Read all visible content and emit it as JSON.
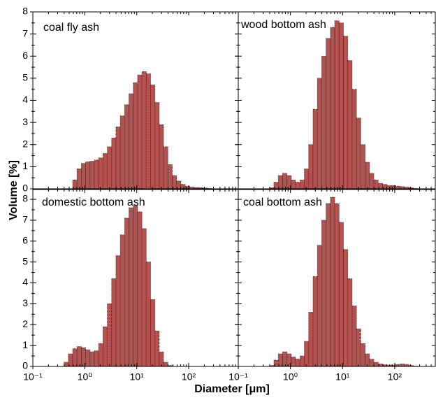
{
  "xlabel": "Diameter [μm]",
  "ylabel": "Volume [%]",
  "log_x": true,
  "xticks": [
    {
      "value": 0.1,
      "label": "10⁻¹"
    },
    {
      "value": 1,
      "label": "10⁰"
    },
    {
      "value": 10,
      "label": "10¹"
    },
    {
      "value": 100,
      "label": "10²"
    }
  ],
  "yticks": [
    0,
    1,
    2,
    3,
    4,
    5,
    6,
    7,
    8
  ],
  "chart_data": [
    {
      "type": "histogram",
      "label": "coal fly ash",
      "color": "#b5524f",
      "xlim": [
        0.1,
        900
      ],
      "ylim": [
        0,
        8
      ],
      "bins": [
        0.398,
        0.482,
        0.585,
        0.708,
        0.858,
        1.039,
        1.259,
        1.525,
        1.848,
        2.239,
        2.713,
        3.286,
        3.981,
        4.823,
        5.843,
        7.079,
        8.577,
        10.39,
        12.59,
        15.25,
        18.48,
        22.39,
        27.13,
        32.86,
        39.81,
        48.23,
        58.43,
        70.79,
        85.77,
        103.9,
        125.9,
        152.5,
        184.8,
        223.9,
        271.3,
        328.6
      ],
      "values": [
        0,
        0,
        0.4,
        0.9,
        1.15,
        1.22,
        1.25,
        1.3,
        1.4,
        1.6,
        1.9,
        2.3,
        2.8,
        3.3,
        3.8,
        4.3,
        4.8,
        5.15,
        5.3,
        5.2,
        4.7,
        3.9,
        2.9,
        1.9,
        1.1,
        0.6,
        0.35,
        0.2,
        0.12,
        0.08,
        0.06,
        0.05,
        0.04,
        0.02,
        0
      ]
    },
    {
      "type": "histogram",
      "label": "wood bottom ash",
      "color": "#b5524f",
      "xlim": [
        0.1,
        600
      ],
      "ylim": [
        0,
        8
      ],
      "bins": [
        0.398,
        0.482,
        0.585,
        0.708,
        0.858,
        1.039,
        1.259,
        1.525,
        1.848,
        2.239,
        2.713,
        3.286,
        3.981,
        4.823,
        5.843,
        7.079,
        8.577,
        10.39,
        12.59,
        15.25,
        18.48,
        22.39,
        27.13,
        32.86,
        39.81,
        48.23,
        58.43,
        70.79,
        85.77,
        103.9,
        125.9,
        152.5,
        184.8,
        223.9,
        271.3,
        328.6
      ],
      "values": [
        0.05,
        0.3,
        0.6,
        0.7,
        0.6,
        0.4,
        0.3,
        0.4,
        0.9,
        2.0,
        3.6,
        5.0,
        6.0,
        6.8,
        7.3,
        7.6,
        7.5,
        6.9,
        5.8,
        4.5,
        3.2,
        2.0,
        1.2,
        0.7,
        0.4,
        0.25,
        0.2,
        0.15,
        0.15,
        0.12,
        0.1,
        0.08,
        0.05,
        0.02,
        0
      ]
    },
    {
      "type": "histogram",
      "label": "domestic bottom ash",
      "color": "#b5524f",
      "xlim": [
        0.1,
        900
      ],
      "ylim": [
        0,
        8.47
      ],
      "bins": [
        0.398,
        0.482,
        0.585,
        0.708,
        0.858,
        1.039,
        1.259,
        1.525,
        1.848,
        2.239,
        2.713,
        3.286,
        3.981,
        4.823,
        5.843,
        7.079,
        8.577,
        10.39,
        12.59,
        15.25,
        18.48,
        22.39,
        27.13,
        32.86,
        39.81,
        48.23,
        58.43,
        70.79,
        85.77,
        103.9,
        125.9,
        152.5,
        184.8,
        223.9,
        271.3,
        328.6
      ],
      "values": [
        0.2,
        0.6,
        0.85,
        0.95,
        0.9,
        0.8,
        0.7,
        0.75,
        1.1,
        1.9,
        3.0,
        4.2,
        5.3,
        6.3,
        7.1,
        7.6,
        7.7,
        7.4,
        6.6,
        5.0,
        3.2,
        1.7,
        0.7,
        0.2,
        0.05,
        0,
        0,
        0,
        0,
        0,
        0,
        0,
        0,
        0,
        0
      ]
    },
    {
      "type": "histogram",
      "label": "coal bottom ash",
      "color": "#b5524f",
      "xlim": [
        0.1,
        600
      ],
      "ylim": [
        0,
        8.47
      ],
      "bins": [
        0.398,
        0.482,
        0.585,
        0.708,
        0.858,
        1.039,
        1.259,
        1.525,
        1.848,
        2.239,
        2.713,
        3.286,
        3.981,
        4.823,
        5.843,
        7.079,
        8.577,
        10.39,
        12.59,
        15.25,
        18.48,
        22.39,
        27.13,
        32.86,
        39.81,
        48.23,
        58.43,
        70.79,
        85.77,
        103.9,
        125.9,
        152.5,
        184.8,
        223.9,
        271.3,
        328.6
      ],
      "values": [
        0.05,
        0.3,
        0.6,
        0.7,
        0.6,
        0.45,
        0.35,
        0.5,
        1.2,
        2.6,
        4.3,
        5.8,
        7.0,
        7.8,
        8.1,
        7.8,
        6.9,
        5.6,
        4.2,
        2.9,
        1.8,
        1.1,
        0.6,
        0.35,
        0.2,
        0.12,
        0.08,
        0.06,
        0.06,
        0.1,
        0.12,
        0.1,
        0.05,
        0.02,
        0
      ]
    }
  ]
}
